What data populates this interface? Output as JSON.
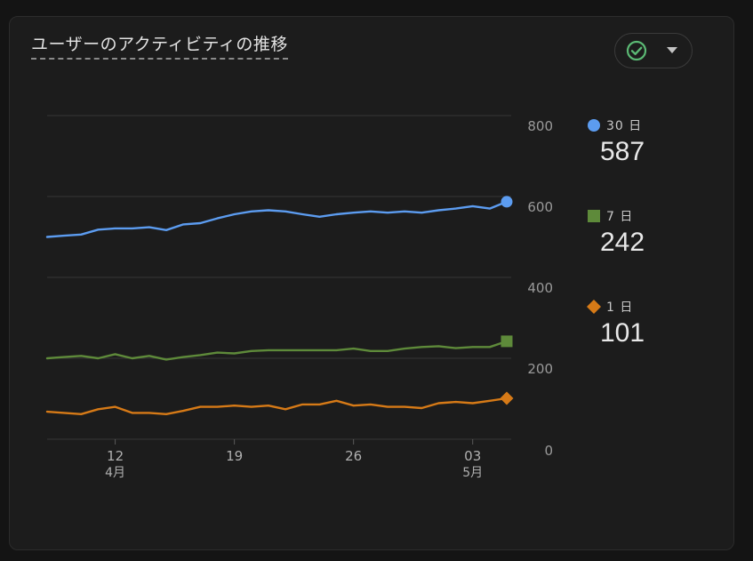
{
  "card": {
    "title": "ユーザーのアクティビティの推移"
  },
  "status_button": {
    "icon": "check-circle-icon",
    "caret_icon": "caret-down-icon",
    "check_color": "#5bb974"
  },
  "chart_data": {
    "type": "line",
    "title": "ユーザーのアクティビティの推移",
    "xlabel": "",
    "ylabel": "",
    "ylim": [
      0,
      800
    ],
    "yticks": [
      0,
      200,
      400,
      600,
      800
    ],
    "grid": true,
    "y_axis_position": "right",
    "legend_placement": "right",
    "x_ticks": [
      {
        "day": "12",
        "month": "4月",
        "index": 4
      },
      {
        "day": "19",
        "month": "",
        "index": 11
      },
      {
        "day": "26",
        "month": "",
        "index": 18
      },
      {
        "day": "03",
        "month": "5月",
        "index": 25
      }
    ],
    "series": [
      {
        "name": "30 日",
        "display_value": "587",
        "color": "#5c9cf0",
        "marker": "circle",
        "values": [
          500,
          503,
          506,
          518,
          521,
          521,
          524,
          517,
          531,
          534,
          546,
          556,
          563,
          566,
          563,
          556,
          550,
          556,
          560,
          563,
          560,
          563,
          560,
          566,
          570,
          576,
          570,
          587
        ]
      },
      {
        "name": "7 日",
        "display_value": "242",
        "color": "#5e8a3a",
        "marker": "square",
        "values": [
          200,
          203,
          206,
          200,
          210,
          200,
          206,
          197,
          203,
          208,
          214,
          212,
          218,
          220,
          220,
          220,
          220,
          220,
          224,
          218,
          218,
          224,
          228,
          230,
          225,
          228,
          228,
          242
        ]
      },
      {
        "name": "1 日",
        "display_value": "101",
        "color": "#d67a17",
        "marker": "diamond",
        "values": [
          68,
          65,
          62,
          74,
          80,
          65,
          65,
          62,
          70,
          80,
          80,
          83,
          80,
          83,
          74,
          86,
          86,
          95,
          83,
          86,
          80,
          80,
          77,
          89,
          92,
          89,
          95,
          101
        ]
      }
    ]
  }
}
